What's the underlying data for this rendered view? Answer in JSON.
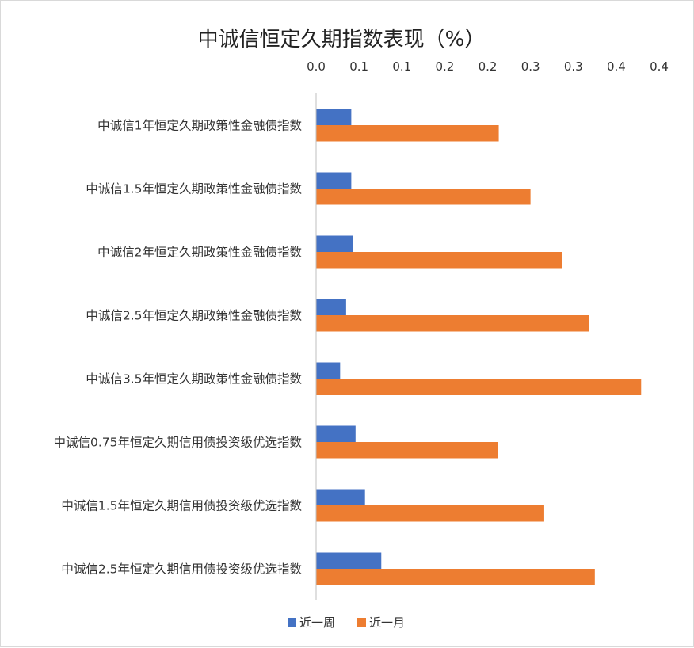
{
  "chart_data": {
    "type": "bar",
    "orientation": "horizontal",
    "title": "中诚信恒定久期指数表现（%）",
    "categories": [
      "中诚信1年恒定久期政策性金融债指数",
      "中诚信1.5年恒定久期政策性金融债指数",
      "中诚信2年恒定久期政策性金融债指数",
      "中诚信2.5年恒定久期政策性金融债指数",
      "中诚信3.5年恒定久期政策性金融债指数",
      "中诚信0.75年恒定久期信用债投资级优选指数",
      "中诚信1.5年恒定久期信用债投资级优选指数",
      "中诚信2.5年恒定久期信用债投资级优选指数"
    ],
    "series": [
      {
        "name": "近一周",
        "color": "#4472C4",
        "values": [
          0.041,
          0.041,
          0.043,
          0.035,
          0.028,
          0.046,
          0.057,
          0.076
        ]
      },
      {
        "name": "近一月",
        "color": "#ED7D31",
        "values": [
          0.213,
          0.25,
          0.287,
          0.318,
          0.379,
          0.212,
          0.266,
          0.325
        ]
      }
    ],
    "x_ticks": [
      "0.0",
      "0.1",
      "0.1",
      "0.2",
      "0.2",
      "0.3",
      "0.3",
      "0.4",
      "0.4"
    ],
    "xlim": [
      0,
      0.4
    ],
    "xlabel": "",
    "ylabel": "",
    "x_axis_position": "top",
    "grid": false,
    "legend_position": "bottom"
  }
}
